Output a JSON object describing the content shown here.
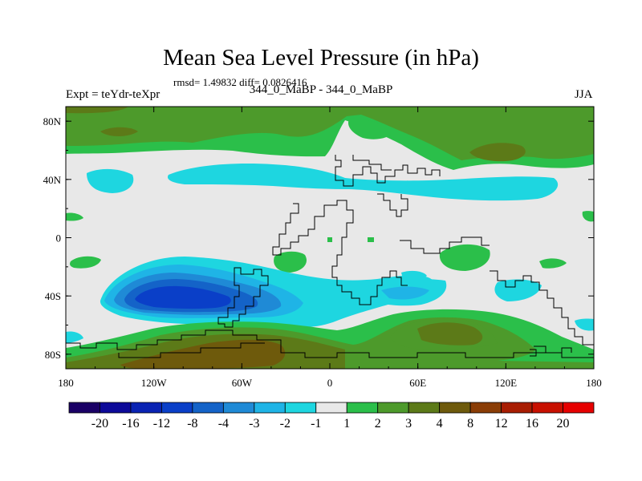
{
  "chart_data": {
    "type": "heatmap",
    "title": "Mean Sea Level Pressure (in hPa)",
    "stats": "rmsd= 1.49832 diff= 0.0826416",
    "left_label": "Expt = teYdr-teXpr",
    "center_label": "344_0_MaBP - 344_0_MaBP",
    "right_label": "JJA",
    "x_ticks": [
      "180",
      "120W",
      "60W",
      "0",
      "60E",
      "120E",
      "180"
    ],
    "x_tick_values": [
      -180,
      -120,
      -60,
      0,
      60,
      120,
      180
    ],
    "y_ticks": [
      "80N",
      "40N",
      "0",
      "40S",
      "80S"
    ],
    "y_tick_values": [
      80,
      40,
      0,
      -40,
      -80
    ],
    "xlim": [
      -180,
      180
    ],
    "ylim": [
      -90,
      90
    ],
    "colorbar": {
      "labels": [
        "-20",
        "-16",
        "-12",
        "-8",
        "-4",
        "-3",
        "-2",
        "-1",
        "1",
        "2",
        "3",
        "4",
        "8",
        "12",
        "16",
        "20"
      ],
      "colors": [
        "#1a0066",
        "#0d0a99",
        "#0a23b3",
        "#0a3fc8",
        "#1463c8",
        "#1f8ad6",
        "#1fb4e6",
        "#1ed6e0",
        "#e8e8e8",
        "#2bbf4a",
        "#4d9a2b",
        "#5c7a18",
        "#6e5a0c",
        "#8a3d06",
        "#a81d02",
        "#c81000",
        "#e60000"
      ]
    },
    "regions": [
      {
        "name": "arctic-positive-band",
        "level": "2",
        "color": "#2bbf4a"
      },
      {
        "name": "arctic-core-3",
        "level": "3",
        "color": "#4d9a2b"
      },
      {
        "name": "siberia-core-4",
        "level": "4",
        "color": "#5c7a18"
      },
      {
        "name": "north-pacific-negative",
        "level": "-1",
        "color": "#1ed6e0"
      },
      {
        "name": "north-atlantic-negative",
        "level": "-1",
        "color": "#1ed6e0"
      },
      {
        "name": "south-pacific-low",
        "level": "-1",
        "color": "#1ed6e0"
      },
      {
        "name": "south-pacific-low-2",
        "level": "-2",
        "color": "#1fb4e6"
      },
      {
        "name": "south-pacific-low-3",
        "level": "-3",
        "color": "#1f8ad6"
      },
      {
        "name": "south-pacific-low-4",
        "level": "-4",
        "color": "#1463c8"
      },
      {
        "name": "south-pacific-core-8",
        "level": "-8",
        "color": "#0a3fc8"
      },
      {
        "name": "antarctic-high-2",
        "level": "2",
        "color": "#2bbf4a"
      },
      {
        "name": "antarctic-high-3",
        "level": "3",
        "color": "#4d9a2b"
      },
      {
        "name": "antarctic-high-4",
        "level": "4",
        "color": "#5c7a18"
      },
      {
        "name": "antarctic-high-8",
        "level": "8",
        "color": "#6e5a0c"
      }
    ]
  }
}
